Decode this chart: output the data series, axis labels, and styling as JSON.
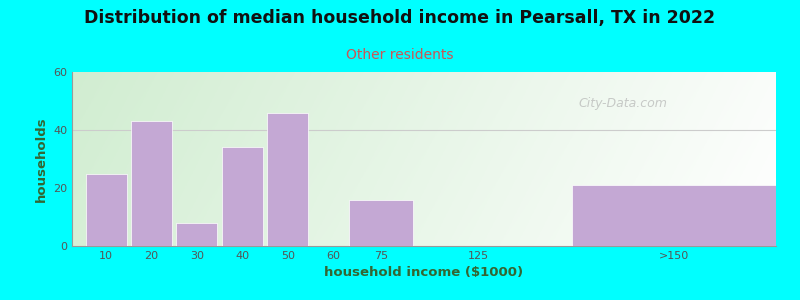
{
  "title": "Distribution of median household income in Pearsall, TX in 2022",
  "subtitle": "Other residents",
  "xlabel": "household income ($1000)",
  "ylabel": "households",
  "title_fontsize": 12.5,
  "subtitle_fontsize": 10,
  "label_fontsize": 9.5,
  "background_color": "#00FFFF",
  "bar_color": "#c4a8d4",
  "ylim": [
    0,
    60
  ],
  "yticks": [
    0,
    20,
    40,
    60
  ],
  "tick_labels": [
    "10",
    "20",
    "30",
    "40",
    "50",
    "60",
    "75",
    "125",
    ">150"
  ],
  "values": [
    25,
    43,
    8,
    34,
    46,
    0,
    16,
    0,
    21
  ],
  "bar_lefts": [
    0.3,
    1.3,
    2.3,
    3.3,
    4.3,
    5.3,
    6.1,
    8.5,
    11.0
  ],
  "bar_widths": [
    0.9,
    0.9,
    0.9,
    0.9,
    0.9,
    0.9,
    1.4,
    0.9,
    4.5
  ],
  "tick_positions": [
    0.75,
    1.75,
    2.75,
    3.75,
    4.75,
    5.75,
    6.8,
    8.95,
    13.25
  ],
  "xlim": [
    0,
    15.5
  ],
  "watermark": "City-Data.com",
  "grid_y": 40,
  "subtitle_color": "#cc5555",
  "ylabel_color": "#336633",
  "xlabel_color": "#336633"
}
